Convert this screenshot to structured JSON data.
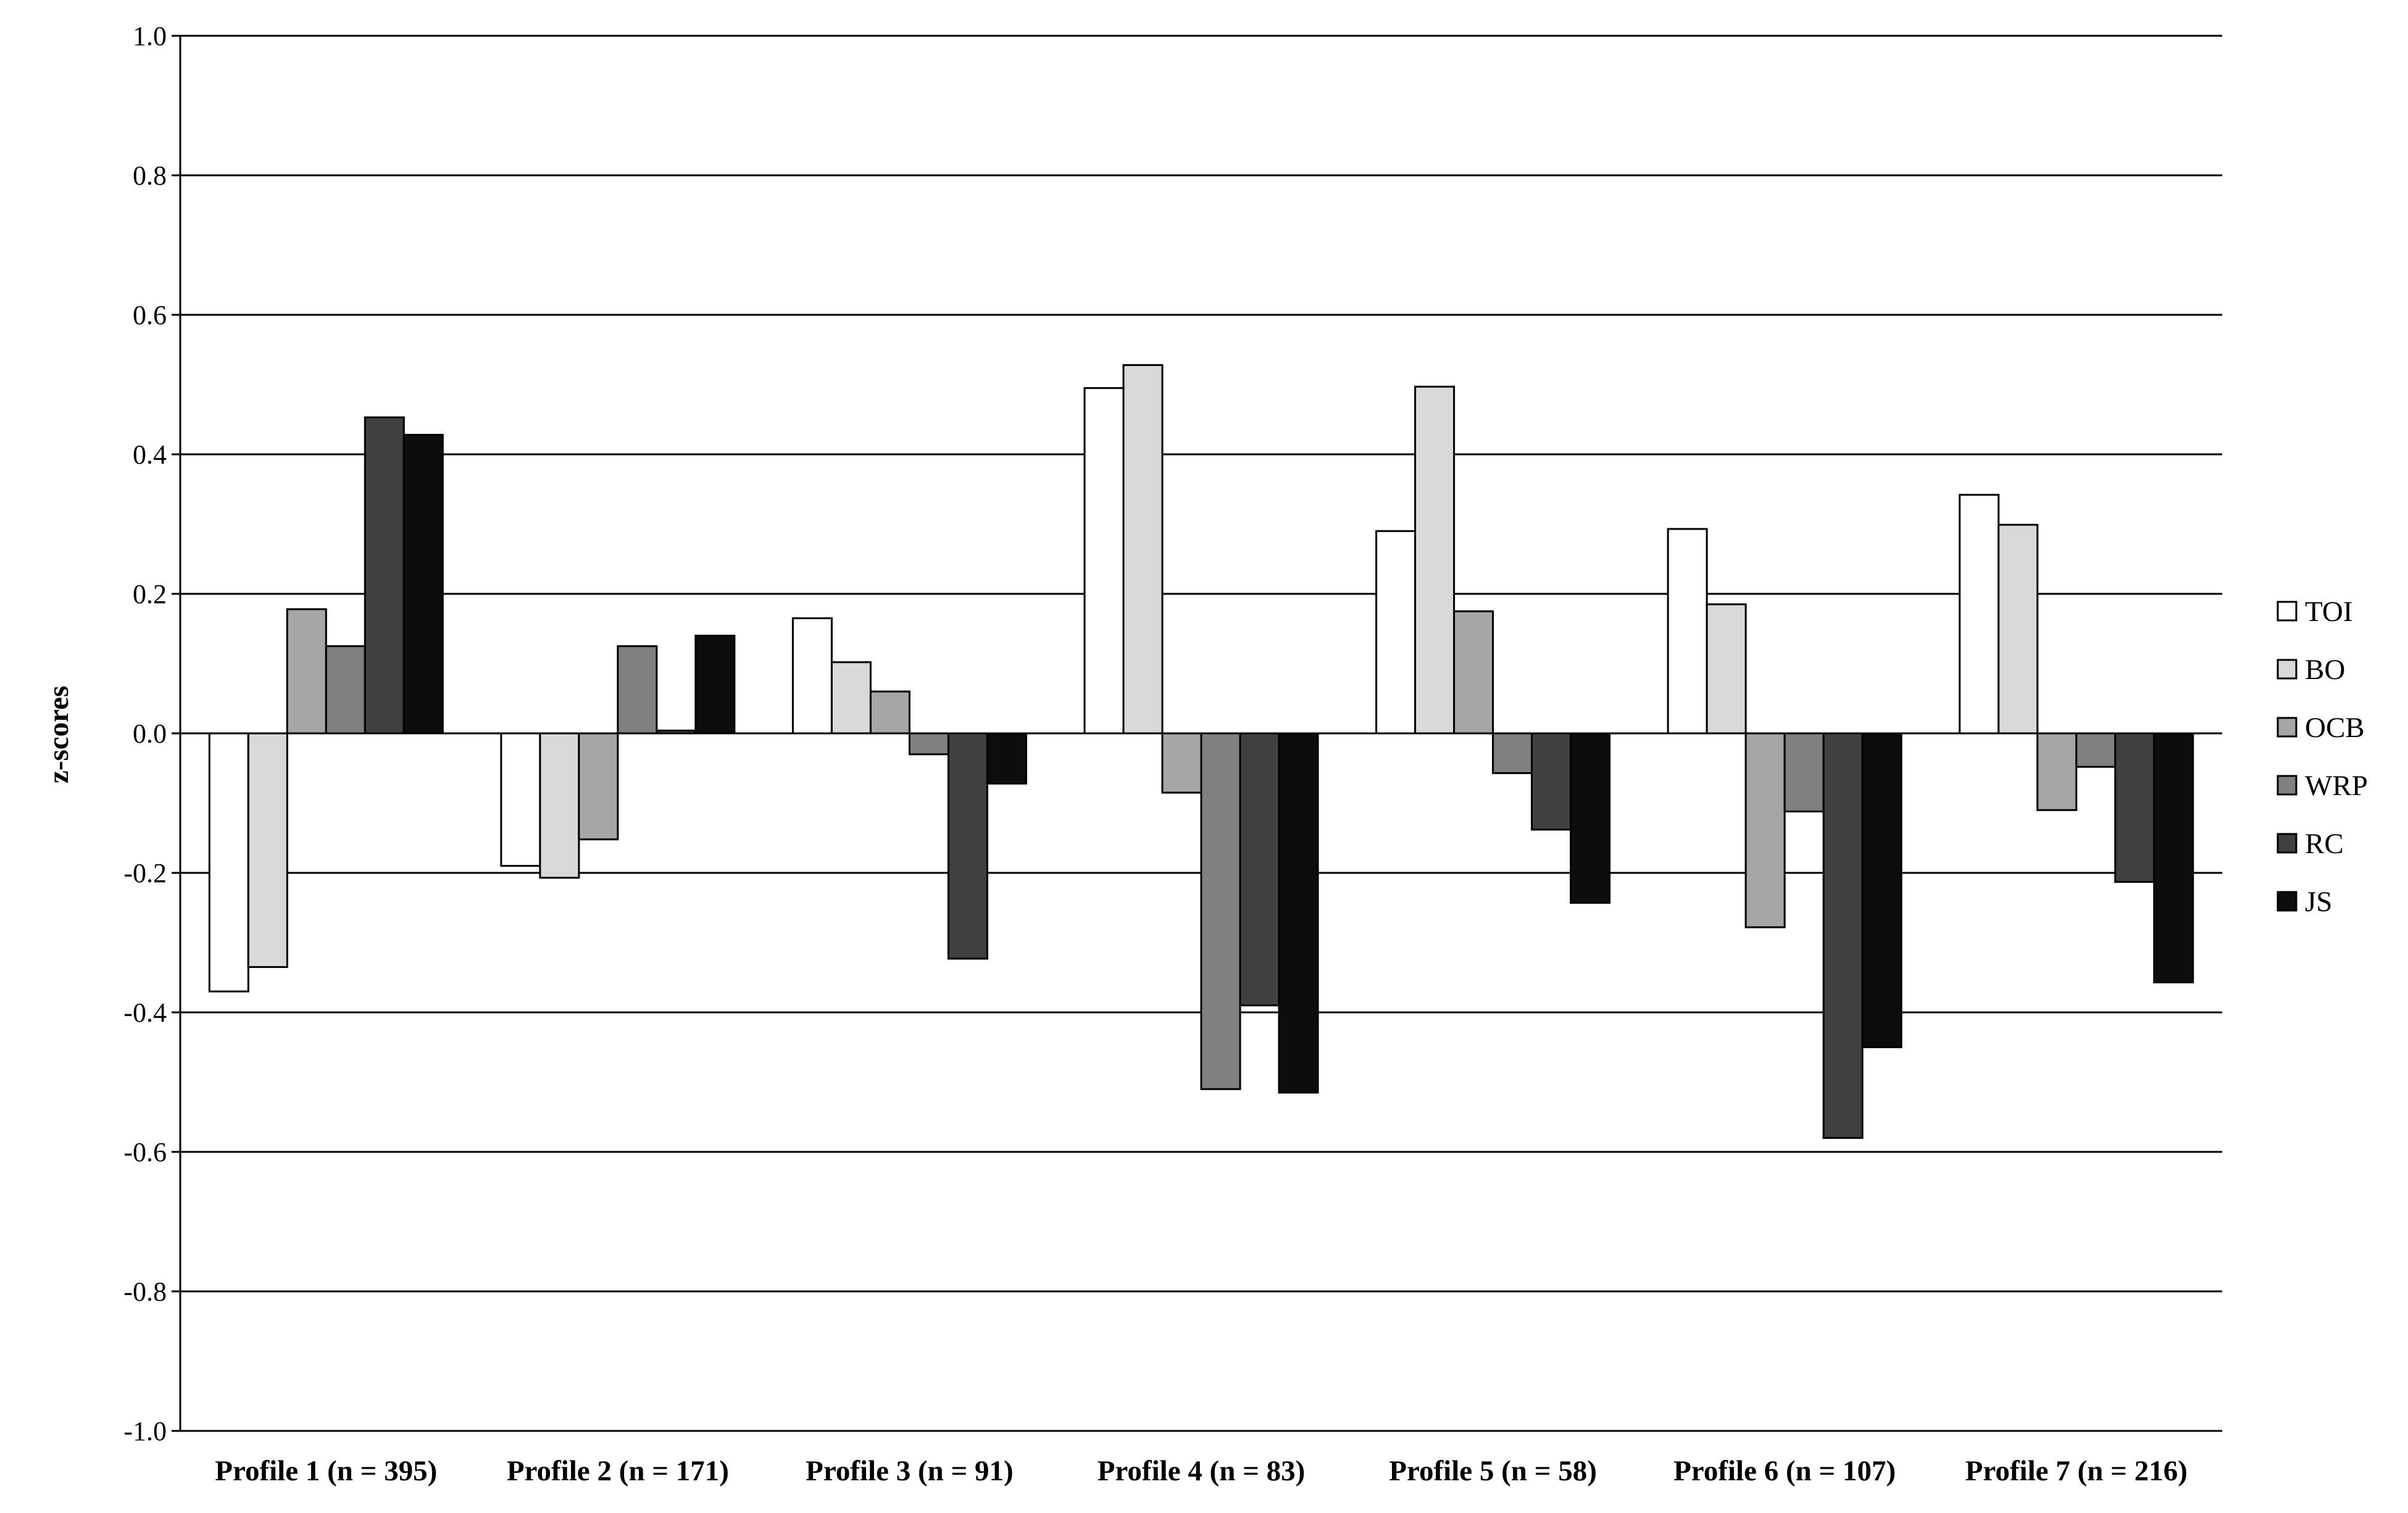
{
  "chart_data": {
    "type": "bar",
    "title": "",
    "xlabel": "",
    "ylabel": "z-scores",
    "ylim": [
      -1.0,
      1.0
    ],
    "yticks": [
      "1.0",
      "0.8",
      "0.6",
      "0.4",
      "0.2",
      "0.0",
      "-0.2",
      "-0.4",
      "-0.6",
      "-0.8",
      "-1.0"
    ],
    "grid": true,
    "legend_position": "right",
    "categories": [
      "Profile 1 (n = 395)",
      "Profile 2 (n = 171)",
      "Profile 3 (n = 91)",
      "Profile 4 (n = 83)",
      "Profile 5  (n = 58)",
      "Profile 6 (n = 107)",
      "Profile 7 (n = 216)"
    ],
    "series": [
      {
        "name": "TOI",
        "color": "#ffffff",
        "values": [
          -0.37,
          -0.19,
          0.165,
          0.495,
          0.29,
          0.293,
          0.342
        ]
      },
      {
        "name": "BO",
        "color": "#d9d9d9",
        "values": [
          -0.335,
          -0.207,
          0.102,
          0.528,
          0.497,
          0.185,
          0.299
        ]
      },
      {
        "name": "OCB",
        "color": "#a6a6a6",
        "values": [
          0.178,
          -0.152,
          0.06,
          -0.085,
          0.175,
          -0.278,
          -0.11
        ]
      },
      {
        "name": "WRP",
        "color": "#808080",
        "values": [
          0.125,
          0.125,
          -0.03,
          -0.51,
          -0.057,
          -0.112,
          -0.048
        ]
      },
      {
        "name": "RC",
        "color": "#404040",
        "values": [
          0.453,
          0.004,
          -0.323,
          -0.39,
          -0.138,
          -0.58,
          -0.213
        ]
      },
      {
        "name": "JS",
        "color": "#0d0d0d",
        "values": [
          0.428,
          0.14,
          -0.072,
          -0.515,
          -0.243,
          -0.45,
          -0.357
        ]
      }
    ]
  }
}
